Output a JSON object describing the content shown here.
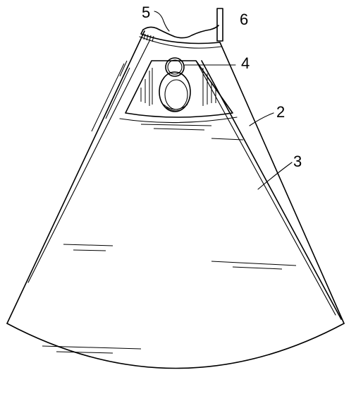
{
  "figure": {
    "labels": [
      {
        "id": "ref-5",
        "text": "5"
      },
      {
        "id": "ref-6",
        "text": "6"
      },
      {
        "id": "ref-4",
        "text": "4"
      },
      {
        "id": "ref-2",
        "text": "2"
      },
      {
        "id": "ref-3",
        "text": "3"
      }
    ]
  }
}
